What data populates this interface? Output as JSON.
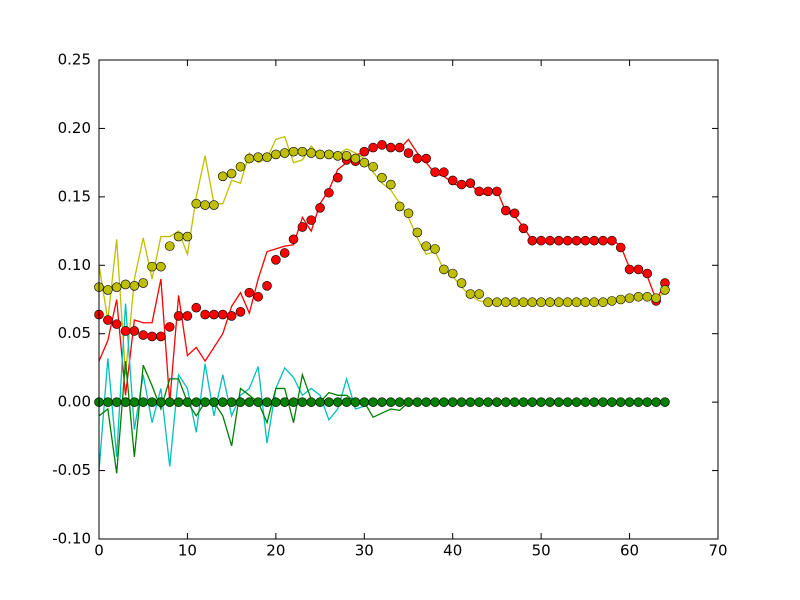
{
  "chart_data": {
    "type": "line",
    "x": [
      0,
      1,
      2,
      3,
      4,
      5,
      6,
      7,
      8,
      9,
      10,
      11,
      12,
      13,
      14,
      15,
      16,
      17,
      18,
      19,
      20,
      21,
      22,
      23,
      24,
      25,
      26,
      27,
      28,
      29,
      30,
      31,
      32,
      33,
      34,
      35,
      36,
      37,
      38,
      39,
      40,
      41,
      42,
      43,
      44,
      45,
      46,
      47,
      48,
      49,
      50,
      51,
      52,
      53,
      54,
      55,
      56,
      57,
      58,
      59,
      60,
      61,
      62,
      63,
      64
    ],
    "xlim": [
      0,
      70
    ],
    "xticks": [
      0,
      10,
      20,
      30,
      40,
      50,
      60,
      70
    ],
    "ylim": [
      -0.1,
      0.25
    ],
    "yticks": [
      {
        "value": -0.1,
        "label": "-0.10"
      },
      {
        "value": -0.05,
        "label": "-0.05"
      },
      {
        "value": 0,
        "label": "0.00"
      },
      {
        "value": 0.05,
        "label": "0.05"
      },
      {
        "value": 0.1,
        "label": "0.10"
      },
      {
        "value": 0.15,
        "label": "0.15"
      },
      {
        "value": 0.2,
        "label": "0.20"
      },
      {
        "value": 0.25,
        "label": "0.25"
      }
    ],
    "grid": false,
    "series": [
      {
        "color": "#ff0000",
        "linestyle": "solid",
        "marker": "none",
        "values": [
          0.03,
          0.045,
          0.075,
          0.005,
          0.06,
          0.058,
          0.058,
          0.09,
          0.0,
          0.078,
          0.034,
          0.04,
          0.03,
          0.04,
          0.05,
          0.07,
          0.08,
          0.065,
          0.09,
          0.11,
          0.112,
          0.114,
          0.115,
          0.135,
          0.125,
          0.145,
          0.155,
          0.17,
          0.175,
          0.181,
          0.182,
          0.185,
          0.19,
          0.185,
          0.185,
          0.192,
          0.182,
          0.175,
          0.167,
          0.165,
          0.16,
          0.157,
          0.16,
          0.152,
          0.152,
          0.155,
          0.139,
          0.136,
          0.128,
          0.118,
          0.117,
          0.118,
          0.118,
          0.119,
          0.118,
          0.117,
          0.118,
          0.118,
          0.119,
          0.114,
          0.098,
          0.096,
          0.092,
          0.075,
          0.086
        ]
      },
      {
        "color": "#bfbf00",
        "linestyle": "solid",
        "marker": "none",
        "values": [
          0.1,
          0.06,
          0.119,
          0.02,
          0.09,
          0.12,
          0.09,
          0.121,
          0.121,
          0.125,
          0.108,
          0.15,
          0.18,
          0.145,
          0.145,
          0.162,
          0.16,
          0.182,
          0.175,
          0.178,
          0.192,
          0.194,
          0.175,
          0.177,
          0.187,
          0.18,
          0.182,
          0.181,
          0.185,
          0.182,
          0.178,
          0.168,
          0.16,
          0.155,
          0.145,
          0.135,
          0.12,
          0.108,
          0.11,
          0.097,
          0.092,
          0.084,
          0.078,
          0.074,
          0.073,
          0.073,
          0.073,
          0.073,
          0.073,
          0.073,
          0.073,
          0.073,
          0.073,
          0.073,
          0.073,
          0.073,
          0.073,
          0.073,
          0.074,
          0.075,
          0.076,
          0.077,
          0.077,
          0.076,
          0.08
        ]
      },
      {
        "color": "#00bfbf",
        "linestyle": "solid",
        "marker": "none",
        "values": [
          -0.05,
          0.032,
          -0.04,
          0.072,
          -0.02,
          0.02,
          -0.015,
          0.01,
          -0.047,
          0.02,
          0.01,
          -0.022,
          0.028,
          -0.01,
          0.02,
          -0.01,
          0.005,
          0.01,
          0.026,
          -0.03,
          0.01,
          0.025,
          0.018,
          0.005,
          0.01,
          0.005,
          -0.013,
          -0.005,
          0.017,
          -0.005,
          -0.003,
          0,
          0,
          0,
          0,
          0,
          0,
          0,
          0,
          0,
          0,
          0,
          0,
          0,
          0,
          0,
          0,
          0,
          0,
          0,
          0,
          0,
          0,
          0,
          0,
          0,
          0,
          0,
          0,
          0,
          0,
          0,
          0,
          0,
          0
        ]
      },
      {
        "color": "#008000",
        "linestyle": "solid",
        "marker": "none",
        "values": [
          -0.01,
          -0.005,
          -0.052,
          0.03,
          -0.04,
          0.027,
          0.012,
          -0.005,
          0.017,
          0.017,
          0,
          -0.01,
          0,
          0,
          -0.01,
          -0.032,
          0.01,
          0.005,
          0,
          -0.015,
          0.01,
          0.01,
          -0.015,
          0.02,
          0.002,
          0,
          0.007,
          0.005,
          0.005,
          0,
          0,
          -0.011,
          -0.008,
          -0.005,
          -0.006,
          0,
          0,
          0,
          0,
          0,
          0,
          0,
          0,
          0,
          0,
          0,
          0,
          0,
          0,
          0,
          0,
          0,
          0,
          0,
          0,
          0,
          0,
          0,
          0,
          0,
          0,
          0,
          0,
          0,
          0
        ]
      },
      {
        "color": "#ff0000",
        "linestyle": "none",
        "marker": "o",
        "values": [
          0.064,
          0.06,
          0.057,
          0.052,
          0.052,
          0.049,
          0.048,
          0.048,
          0.055,
          0.063,
          0.063,
          0.069,
          0.064,
          0.064,
          0.064,
          0.063,
          0.066,
          0.08,
          0.077,
          0.085,
          0.104,
          0.109,
          0.119,
          0.128,
          0.133,
          0.142,
          0.153,
          0.164,
          0.177,
          0.176,
          0.183,
          0.186,
          0.188,
          0.186,
          0.186,
          0.182,
          0.178,
          0.178,
          0.168,
          0.168,
          0.162,
          0.159,
          0.16,
          0.154,
          0.154,
          0.154,
          0.14,
          0.138,
          0.127,
          0.118,
          0.118,
          0.118,
          0.118,
          0.118,
          0.118,
          0.118,
          0.118,
          0.118,
          0.118,
          0.113,
          0.097,
          0.097,
          0.094,
          0.074,
          0.087
        ]
      },
      {
        "color": "#bfbf00",
        "linestyle": "none",
        "marker": "o",
        "values": [
          0.084,
          0.082,
          0.084,
          0.086,
          0.085,
          0.087,
          0.099,
          0.099,
          0.114,
          0.121,
          0.121,
          0.145,
          0.144,
          0.144,
          0.165,
          0.167,
          0.172,
          0.178,
          0.179,
          0.179,
          0.181,
          0.182,
          0.183,
          0.183,
          0.182,
          0.181,
          0.181,
          0.18,
          0.18,
          0.178,
          0.175,
          0.172,
          0.164,
          0.159,
          0.143,
          0.138,
          0.124,
          0.114,
          0.112,
          0.097,
          0.094,
          0.087,
          0.079,
          0.079,
          0.073,
          0.073,
          0.073,
          0.073,
          0.073,
          0.073,
          0.073,
          0.073,
          0.073,
          0.073,
          0.073,
          0.073,
          0.073,
          0.073,
          0.074,
          0.075,
          0.076,
          0.077,
          0.077,
          0.076,
          0.082
        ]
      },
      {
        "color": "#008000",
        "linestyle": "none",
        "marker": "o",
        "values": [
          0,
          0,
          0,
          0,
          0,
          0,
          0,
          0,
          0,
          0,
          0,
          0,
          0,
          0,
          0,
          0,
          0,
          0,
          0,
          0,
          0,
          0,
          0,
          0,
          0,
          0,
          0,
          0,
          0,
          0,
          0,
          0,
          0,
          0,
          0,
          0,
          0,
          0,
          0,
          0,
          0,
          0,
          0,
          0,
          0,
          0,
          0,
          0,
          0,
          0,
          0,
          0,
          0,
          0,
          0,
          0,
          0,
          0,
          0,
          0,
          0,
          0,
          0,
          0,
          0
        ]
      }
    ]
  }
}
